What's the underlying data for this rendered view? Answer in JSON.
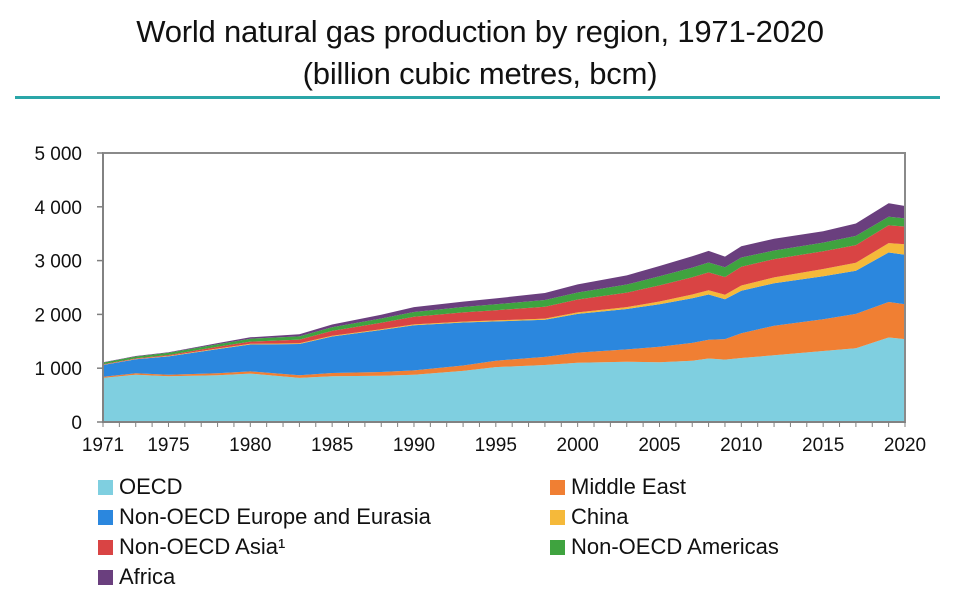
{
  "title_line1": "World natural gas production by region, 1971-2020",
  "title_line2": "(billion cubic metres, bcm)",
  "chart_data": {
    "type": "area",
    "stacked": true,
    "title": "World natural gas production by region, 1971-2020 (billion cubic metres, bcm)",
    "xlabel": "",
    "ylabel": "",
    "x": [
      1971,
      1973,
      1975,
      1978,
      1980,
      1983,
      1985,
      1988,
      1990,
      1993,
      1995,
      1998,
      2000,
      2003,
      2005,
      2007,
      2008,
      2009,
      2010,
      2012,
      2015,
      2017,
      2019,
      2020
    ],
    "xticks": [
      "1971",
      "1975",
      "1980",
      "1985",
      "1990",
      "1995",
      "2000",
      "2005",
      "2010",
      "2015",
      "2020"
    ],
    "xtick_values": [
      1971,
      1975,
      1980,
      1985,
      1990,
      1995,
      2000,
      2005,
      2010,
      2015,
      2020
    ],
    "yticks": [
      "0",
      "1 000",
      "2 000",
      "3 000",
      "4 000",
      "5 000"
    ],
    "ytick_values": [
      0,
      1000,
      2000,
      3000,
      4000,
      5000
    ],
    "ylim": [
      0,
      5000
    ],
    "xlim": [
      1971,
      2020
    ],
    "grid": false,
    "legend_position": "bottom",
    "series": [
      {
        "name": "OECD",
        "color": "#7fcfe0",
        "values": [
          820,
          880,
          850,
          870,
          900,
          820,
          850,
          860,
          880,
          950,
          1020,
          1060,
          1100,
          1120,
          1110,
          1140,
          1180,
          1160,
          1190,
          1240,
          1320,
          1370,
          1570,
          1540
        ]
      },
      {
        "name": "Middle East",
        "color": "#f07f33",
        "values": [
          20,
          25,
          30,
          35,
          40,
          50,
          60,
          70,
          80,
          100,
          120,
          150,
          190,
          230,
          290,
          330,
          350,
          380,
          460,
          550,
          590,
          640,
          660,
          650
        ]
      },
      {
        "name": "Non-OECD Europe and Eurasia",
        "color": "#2b87de",
        "values": [
          220,
          260,
          340,
          450,
          500,
          580,
          680,
          780,
          840,
          800,
          730,
          690,
          720,
          750,
          790,
          830,
          840,
          740,
          790,
          790,
          800,
          800,
          920,
          920
        ]
      },
      {
        "name": "China",
        "color": "#f5b93a",
        "values": [
          5,
          6,
          8,
          12,
          14,
          12,
          13,
          14,
          15,
          17,
          18,
          22,
          27,
          35,
          49,
          69,
          80,
          85,
          97,
          107,
          134,
          149,
          176,
          194
        ]
      },
      {
        "name": "Non-OECD Asia¹",
        "color": "#d94444",
        "values": [
          10,
          12,
          18,
          30,
          40,
          70,
          90,
          120,
          140,
          170,
          190,
          220,
          240,
          270,
          300,
          320,
          330,
          330,
          350,
          340,
          330,
          330,
          330,
          330
        ]
      },
      {
        "name": "Non-OECD Americas",
        "color": "#3fa33f",
        "values": [
          30,
          35,
          40,
          50,
          55,
          60,
          70,
          80,
          90,
          100,
          110,
          125,
          130,
          150,
          170,
          180,
          185,
          180,
          170,
          160,
          160,
          170,
          160,
          150
        ]
      },
      {
        "name": "Africa",
        "color": "#6a3f7e",
        "values": [
          5,
          8,
          12,
          20,
          25,
          40,
          50,
          70,
          90,
          100,
          110,
          130,
          150,
          170,
          190,
          210,
          215,
          200,
          210,
          220,
          210,
          230,
          250,
          230
        ]
      }
    ]
  }
}
